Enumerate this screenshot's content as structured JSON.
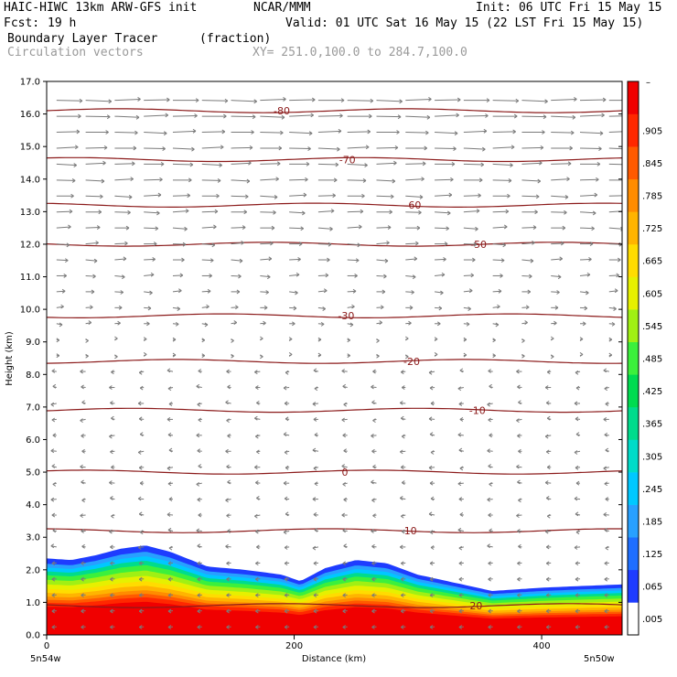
{
  "header": {
    "model": "HAIC-HIWC 13km ARW-GFS init",
    "org": "NCAR/MMM",
    "init": "Init: 06 UTC Fri 15 May 15",
    "fcst_label": "Fcst:",
    "fcst_value": "19 h",
    "valid": "Valid: 01 UTC Sat 16 May 15 (22 LST Fri 15 May 15)",
    "field_name": "Boundary Layer Tracer",
    "field_unit": "(fraction)",
    "vector_label": "Circulation vectors",
    "xy_label": "XY= 251.0,100.0 to 284.7,100.0"
  },
  "chart_data": {
    "type": "heatmap",
    "xlabel": "Distance (km)",
    "ylabel": "Height (km)",
    "xlim": [
      0,
      465
    ],
    "ylim": [
      0,
      17
    ],
    "x_ticks": [
      0,
      200,
      400
    ],
    "y_ticks": [
      "0.0",
      "1.0",
      "2.0",
      "3.0",
      "4.0",
      "5.0",
      "6.0",
      "7.0",
      "8.0",
      "9.0",
      "10.0",
      "11.0",
      "12.0",
      "13.0",
      "14.0",
      "15.0",
      "16.0",
      "17.0"
    ],
    "x_endpoint_labels": [
      "5n54w",
      "5n50w"
    ],
    "colorbar": {
      "labels": [
        ".005",
        ".065",
        ".125",
        ".185",
        ".245",
        ".305",
        ".365",
        ".425",
        ".485",
        ".545",
        ".605",
        ".665",
        ".725",
        ".785",
        ".845",
        ".905"
      ],
      "top_label": "–",
      "colors": [
        "#ffffff",
        "#1e3cff",
        "#1e6eff",
        "#28a0ff",
        "#00c8ff",
        "#00dcc8",
        "#00dc8c",
        "#00dc50",
        "#3cf03c",
        "#a0f014",
        "#e6f000",
        "#ffdc00",
        "#ffb400",
        "#ff8c00",
        "#ff5a00",
        "#ff2800",
        "#f00000"
      ]
    },
    "temperature_contours": [
      {
        "label": "-80",
        "height_km": 16.1
      },
      {
        "label": "-70",
        "height_km": 14.6
      },
      {
        "label": "-60",
        "height_km": 13.2
      },
      {
        "label": "-50",
        "height_km": 12.0
      },
      {
        "label": "-30",
        "height_km": 9.8
      },
      {
        "label": "-20",
        "height_km": 8.4
      },
      {
        "label": "-10",
        "height_km": 6.9
      },
      {
        "label": "0",
        "height_km": 5.0
      },
      {
        "label": "10",
        "height_km": 3.2
      },
      {
        "label": "20",
        "height_km": 0.9
      }
    ],
    "tracer_top_height_km": [
      [
        0,
        2.35
      ],
      [
        20,
        2.3
      ],
      [
        40,
        2.45
      ],
      [
        60,
        2.65
      ],
      [
        80,
        2.75
      ],
      [
        100,
        2.55
      ],
      [
        130,
        2.1
      ],
      [
        160,
        2.0
      ],
      [
        190,
        1.85
      ],
      [
        205,
        1.65
      ],
      [
        225,
        2.05
      ],
      [
        250,
        2.3
      ],
      [
        275,
        2.2
      ],
      [
        300,
        1.85
      ],
      [
        330,
        1.6
      ],
      [
        360,
        1.35
      ],
      [
        400,
        1.45
      ],
      [
        430,
        1.5
      ],
      [
        465,
        1.55
      ]
    ]
  }
}
